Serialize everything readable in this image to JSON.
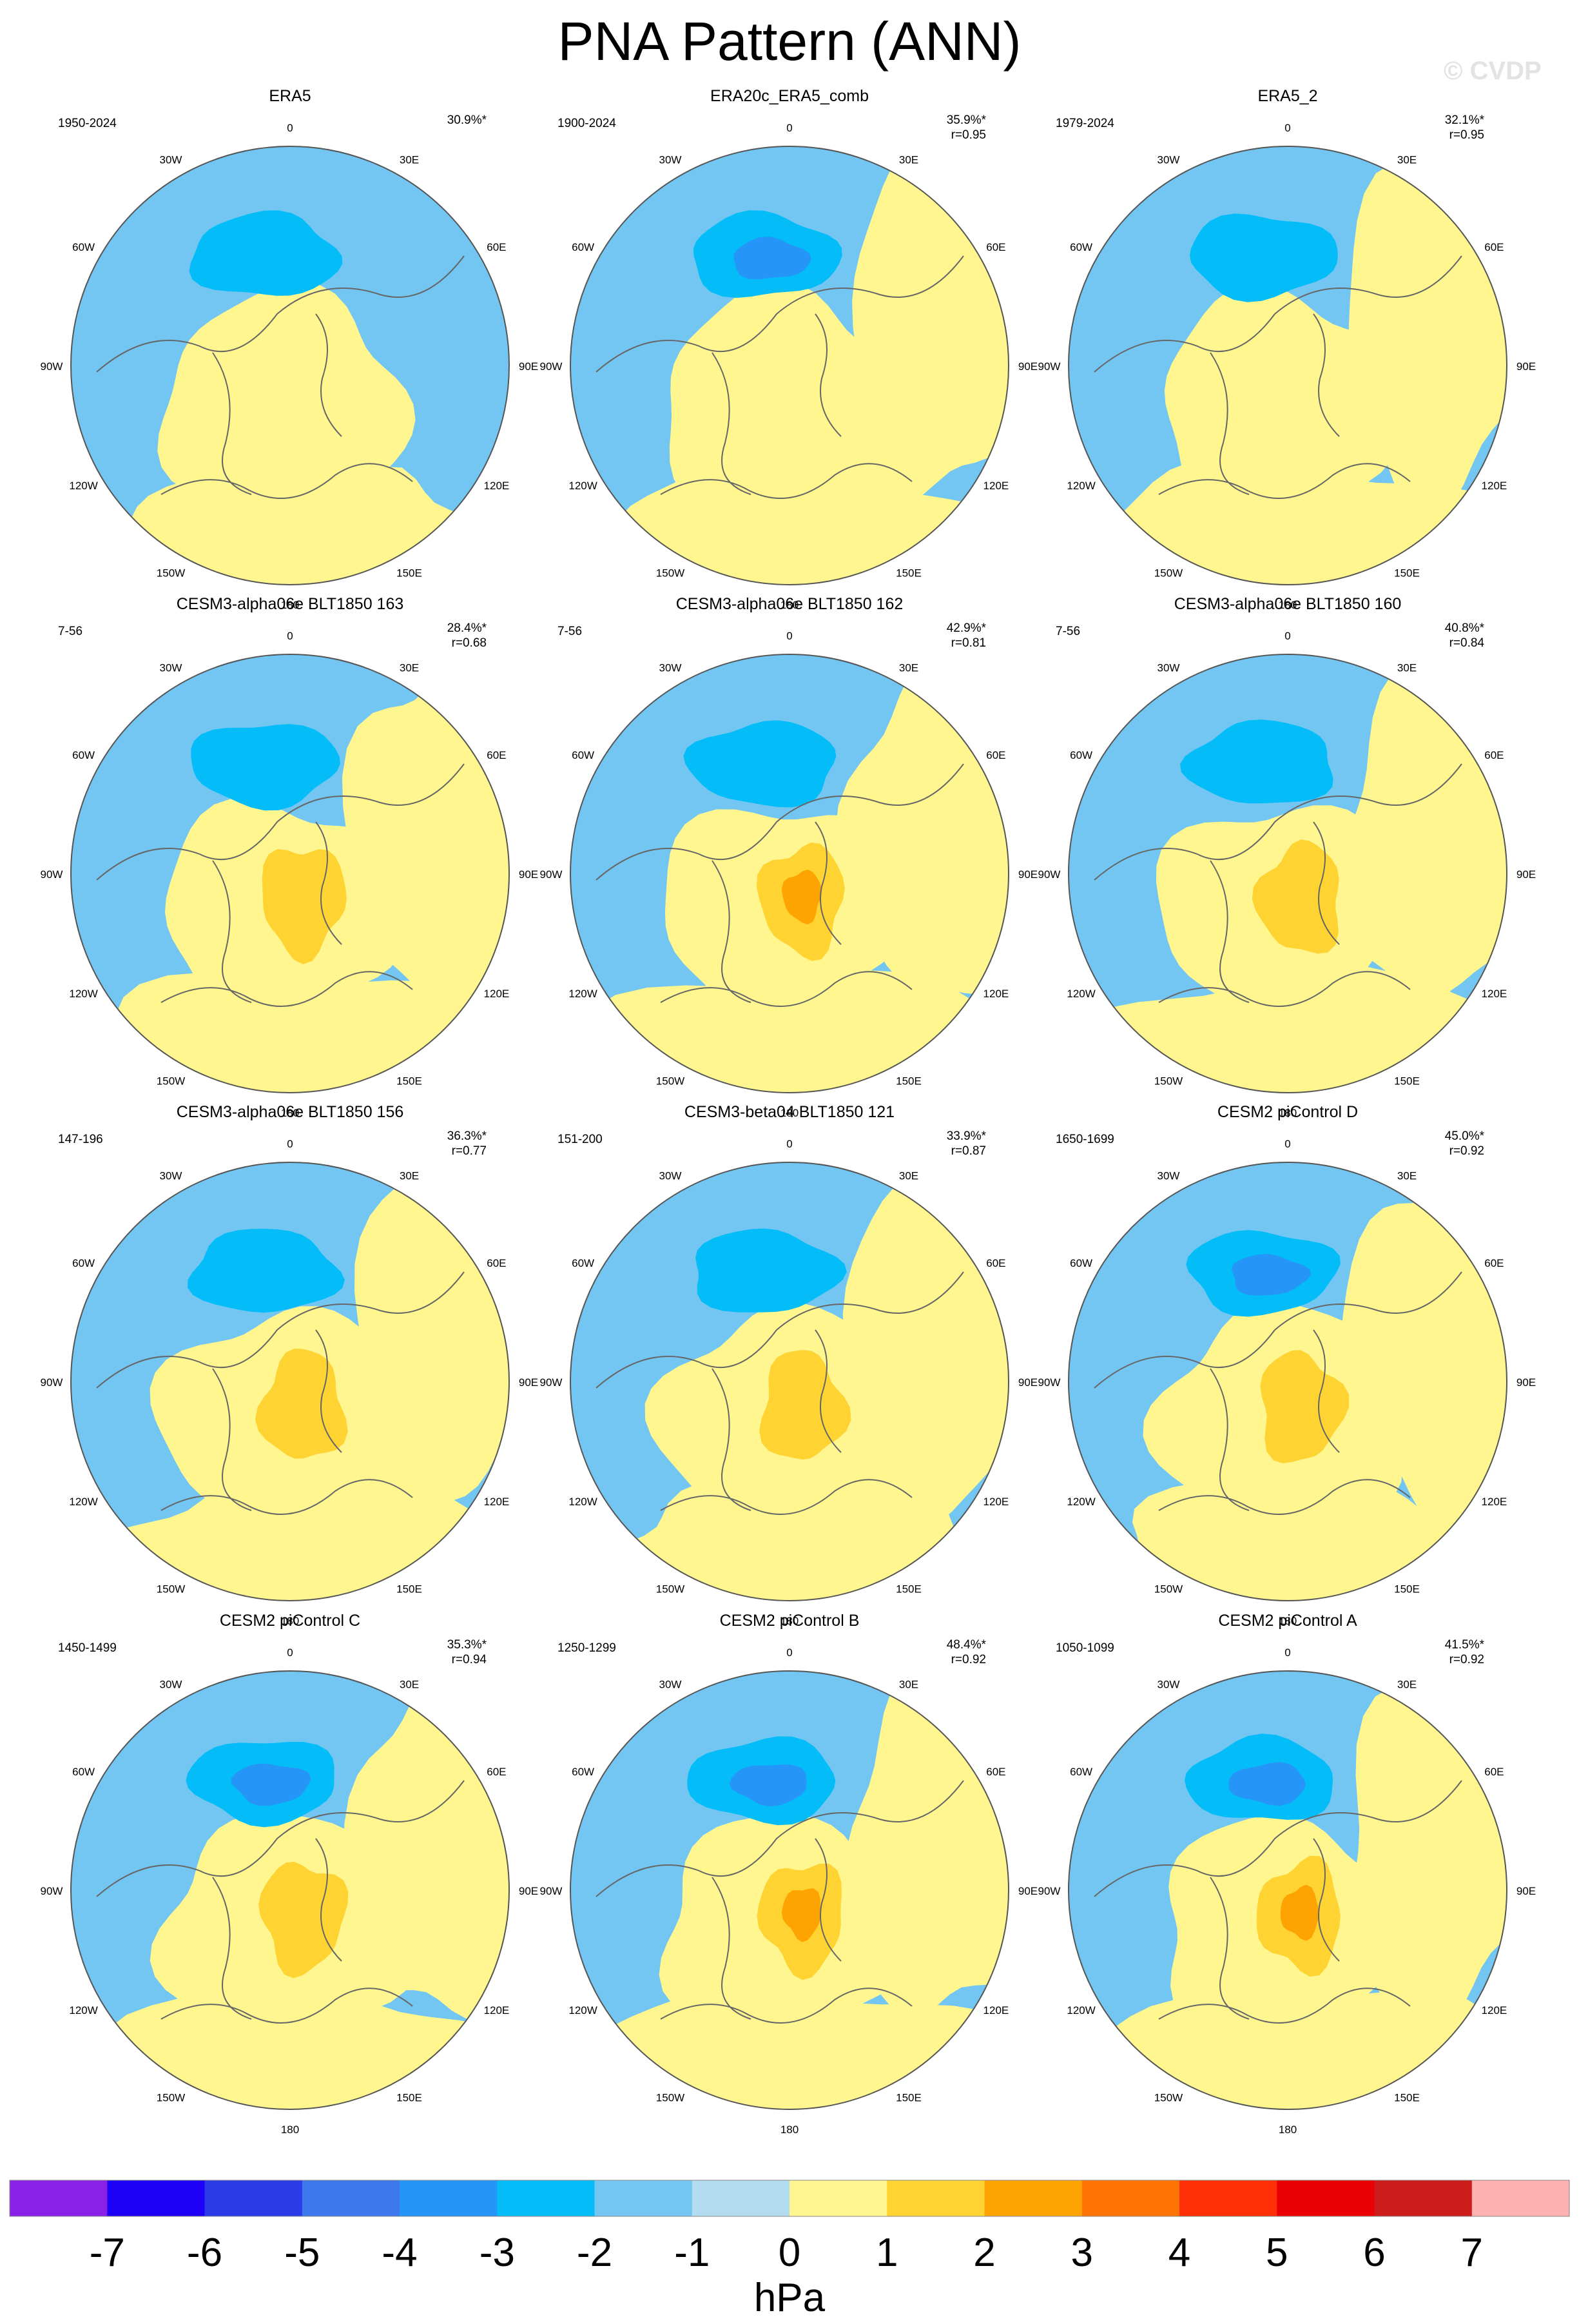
{
  "title": "PNA Pattern (ANN)",
  "watermark": "© CVDP",
  "chart_data": {
    "type": "heatmap",
    "title": "PNA Pattern (ANN)",
    "projection": "polar-stereographic-north",
    "lon_labels": [
      "180",
      "150E",
      "120E",
      "90E",
      "60E",
      "30E",
      "0",
      "30W",
      "60W",
      "90W",
      "120W",
      "150W"
    ],
    "panels": [
      {
        "name": "ERA5",
        "period": "1950-2024",
        "pct": "30.9%*",
        "r": "",
        "field": {
          "low": -1.9,
          "high": 0.6,
          "ring": -0.1
        }
      },
      {
        "name": "ERA20c_ERA5_comb",
        "period": "1900-2024",
        "pct": "35.9%*",
        "r": "r=0.95",
        "field": {
          "low": -2.3,
          "high": 0.6,
          "ring": 0.0
        }
      },
      {
        "name": "ERA5_2",
        "period": "1979-2024",
        "pct": "32.1%*",
        "r": "r=0.95",
        "field": {
          "low": -1.9,
          "high": 0.6,
          "ring": 0.1
        }
      },
      {
        "name": "CESM3-alpha06e BLT1850 163",
        "period": "7-56",
        "pct": "28.4%*",
        "r": "r=0.68",
        "field": {
          "low": -1.5,
          "high": 1.5,
          "ring": 0.05
        }
      },
      {
        "name": "CESM3-alpha06e BLT1850 162",
        "period": "7-56",
        "pct": "42.9%*",
        "r": "r=0.81",
        "field": {
          "low": -1.8,
          "high": 2.4,
          "ring": 0.1
        }
      },
      {
        "name": "CESM3-alpha06e BLT1850 160",
        "period": "7-56",
        "pct": "40.8%*",
        "r": "r=0.84",
        "field": {
          "low": -1.9,
          "high": 1.8,
          "ring": 0.1
        }
      },
      {
        "name": "CESM3-alpha06e BLT1850 156",
        "period": "147-196",
        "pct": "36.3%*",
        "r": "r=0.77",
        "field": {
          "low": -1.8,
          "high": 1.5,
          "ring": 0.05
        }
      },
      {
        "name": "CESM3-beta04 BLT1850 121",
        "period": "151-200",
        "pct": "33.9%*",
        "r": "r=0.87",
        "field": {
          "low": -1.8,
          "high": 1.6,
          "ring": 0.1
        }
      },
      {
        "name": "CESM2 piControl D",
        "period": "1650-1699",
        "pct": "45.0%*",
        "r": "r=0.92",
        "field": {
          "low": -2.6,
          "high": 1.7,
          "ring": 0.1
        }
      },
      {
        "name": "CESM2 piControl C",
        "period": "1450-1499",
        "pct": "35.3%*",
        "r": "r=0.94",
        "field": {
          "low": -2.3,
          "high": 1.5,
          "ring": 0.1
        }
      },
      {
        "name": "CESM2 piControl B",
        "period": "1250-1299",
        "pct": "48.4%*",
        "r": "r=0.92",
        "field": {
          "low": -2.8,
          "high": 2.4,
          "ring": 0.1
        }
      },
      {
        "name": "CESM2 piControl A",
        "period": "1050-1099",
        "pct": "41.5%*",
        "r": "r=0.92",
        "field": {
          "low": -2.6,
          "high": 2.2,
          "ring": 0.1
        }
      }
    ],
    "colorbar": {
      "label": "hPa",
      "ticks": [
        "-7",
        "-6",
        "-5",
        "-4",
        "-3",
        "-2",
        "-1",
        "0",
        "1",
        "2",
        "3",
        "4",
        "5",
        "6",
        "7"
      ],
      "colors": [
        "#8a21e6",
        "#1e00f7",
        "#2a3ce8",
        "#3d79ec",
        "#2596f8",
        "#04bdf8",
        "#73c6f2",
        "#b3dcf1",
        "#fff690",
        "#fed332",
        "#fea402",
        "#fe7305",
        "#ff3005",
        "#eb0103",
        "#cc1c1c",
        "#fdb2b2"
      ]
    }
  }
}
